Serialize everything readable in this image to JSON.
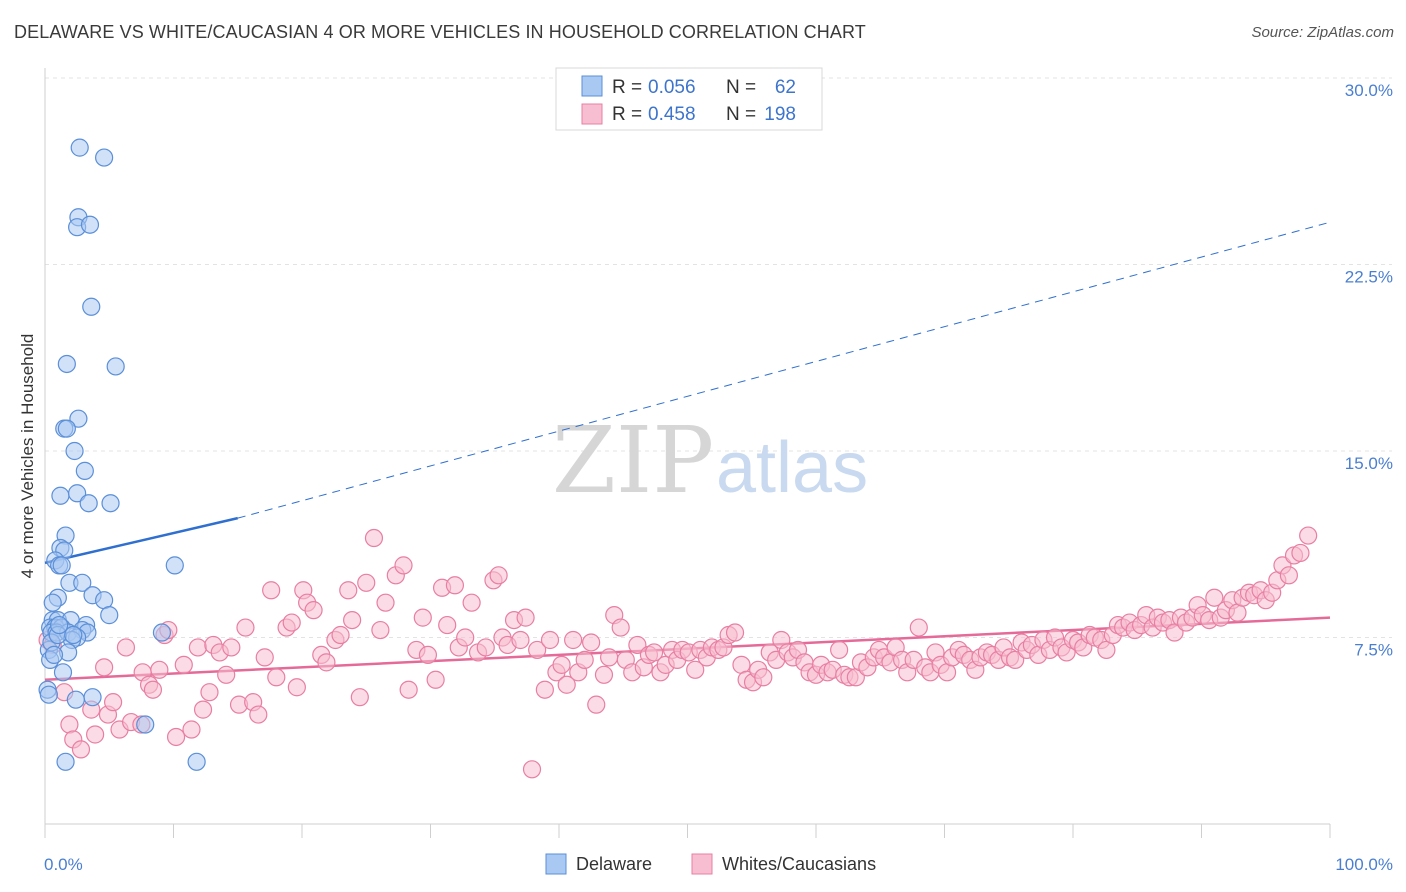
{
  "title": "DELAWARE VS WHITE/CAUCASIAN 4 OR MORE VEHICLES IN HOUSEHOLD CORRELATION CHART",
  "source": "Source: ZipAtlas.com",
  "watermark": {
    "zip": "ZIP",
    "atlas": "atlas"
  },
  "legend_top": {
    "r_label": "R =",
    "n_label": "N =",
    "rows": [
      {
        "r": "0.056",
        "n": "62"
      },
      {
        "r": "0.458",
        "n": "198"
      }
    ]
  },
  "colors": {
    "delaware_fill": "#a9c8f2",
    "delaware_stroke": "#5b8fd8",
    "delaware_line": "#2f6fcf",
    "white_fill": "#f7bdd0",
    "white_stroke": "#e87fa3",
    "white_line": "#e56a97",
    "tick": "#4a7fd0"
  },
  "chart_data": {
    "type": "scatter",
    "title": "DELAWARE VS WHITE/CAUCASIAN 4 OR MORE VEHICLES IN HOUSEHOLD CORRELATION CHART",
    "xlabel": "",
    "ylabel": "4 or more Vehicles in Household",
    "xlim": [
      0,
      100
    ],
    "ylim": [
      0,
      30
    ],
    "x_tick_labels": [
      "0.0%",
      "100.0%"
    ],
    "y_ticks": [
      7.5,
      15.0,
      22.5,
      30.0
    ],
    "y_tick_labels": [
      "7.5%",
      "15.0%",
      "22.5%",
      "30.0%"
    ],
    "grid": true,
    "legend": "top-center",
    "series": [
      {
        "name": "Delaware",
        "r": 0.056,
        "n": 62,
        "trend": {
          "x0": 0,
          "y0": 10.5,
          "x1": 15,
          "y1": 12.3,
          "dashed_to_x": 100,
          "dashed_to_y": 24.2
        },
        "points": [
          [
            2.7,
            27.2
          ],
          [
            4.6,
            26.8
          ],
          [
            2.6,
            24.4
          ],
          [
            2.5,
            24.0
          ],
          [
            3.5,
            24.1
          ],
          [
            3.6,
            20.8
          ],
          [
            1.7,
            18.5
          ],
          [
            5.5,
            18.4
          ],
          [
            2.6,
            16.3
          ],
          [
            1.5,
            15.9
          ],
          [
            1.7,
            15.9
          ],
          [
            2.3,
            15.0
          ],
          [
            3.1,
            14.2
          ],
          [
            1.2,
            13.2
          ],
          [
            2.5,
            13.3
          ],
          [
            3.4,
            12.9
          ],
          [
            5.1,
            12.9
          ],
          [
            1.6,
            11.6
          ],
          [
            1.2,
            11.1
          ],
          [
            1.5,
            11.0
          ],
          [
            0.8,
            10.6
          ],
          [
            1.1,
            10.4
          ],
          [
            1.3,
            10.4
          ],
          [
            10.1,
            10.4
          ],
          [
            1.9,
            9.7
          ],
          [
            2.9,
            9.7
          ],
          [
            1.0,
            9.1
          ],
          [
            3.7,
            9.2
          ],
          [
            4.6,
            9.0
          ],
          [
            0.6,
            8.9
          ],
          [
            5.0,
            8.4
          ],
          [
            0.6,
            8.2
          ],
          [
            1.0,
            8.2
          ],
          [
            2.0,
            8.2
          ],
          [
            0.4,
            7.9
          ],
          [
            0.8,
            7.9
          ],
          [
            1.3,
            7.9
          ],
          [
            3.2,
            8.0
          ],
          [
            0.5,
            7.7
          ],
          [
            0.9,
            7.7
          ],
          [
            1.8,
            7.7
          ],
          [
            2.9,
            7.8
          ],
          [
            3.3,
            7.7
          ],
          [
            2.5,
            7.5
          ],
          [
            2.1,
            7.4
          ],
          [
            9.1,
            7.7
          ],
          [
            0.3,
            7.0
          ],
          [
            1.8,
            6.9
          ],
          [
            0.4,
            6.6
          ],
          [
            1.4,
            6.1
          ],
          [
            0.2,
            5.4
          ],
          [
            3.7,
            5.1
          ],
          [
            2.4,
            5.0
          ],
          [
            7.8,
            4.0
          ],
          [
            1.6,
            2.5
          ],
          [
            11.8,
            2.5
          ],
          [
            0.5,
            7.3
          ],
          [
            1.0,
            7.6
          ],
          [
            0.7,
            6.8
          ],
          [
            2.2,
            7.6
          ],
          [
            0.3,
            5.2
          ],
          [
            1.1,
            8.0
          ]
        ]
      },
      {
        "name": "Whites/Caucasians",
        "r": 0.458,
        "n": 198,
        "trend": {
          "x0": 0,
          "y0": 5.8,
          "x1": 100,
          "y1": 8.3
        },
        "points": [
          [
            0.2,
            7.4
          ],
          [
            0.6,
            7.2
          ],
          [
            1.5,
            5.3
          ],
          [
            1.9,
            4.0
          ],
          [
            2.2,
            3.4
          ],
          [
            2.8,
            3.0
          ],
          [
            3.6,
            4.6
          ],
          [
            3.9,
            3.6
          ],
          [
            4.6,
            6.3
          ],
          [
            4.9,
            4.4
          ],
          [
            5.3,
            4.9
          ],
          [
            5.8,
            3.8
          ],
          [
            6.3,
            7.1
          ],
          [
            6.7,
            4.1
          ],
          [
            7.5,
            4.0
          ],
          [
            7.6,
            6.1
          ],
          [
            8.1,
            5.6
          ],
          [
            8.4,
            5.4
          ],
          [
            8.9,
            6.2
          ],
          [
            9.3,
            7.6
          ],
          [
            9.6,
            7.8
          ],
          [
            10.2,
            3.5
          ],
          [
            10.8,
            6.4
          ],
          [
            11.4,
            3.8
          ],
          [
            11.9,
            7.1
          ],
          [
            12.3,
            4.6
          ],
          [
            12.8,
            5.3
          ],
          [
            13.1,
            7.2
          ],
          [
            13.6,
            6.9
          ],
          [
            14.1,
            6.0
          ],
          [
            14.5,
            7.1
          ],
          [
            15.1,
            4.8
          ],
          [
            15.6,
            7.9
          ],
          [
            16.2,
            4.9
          ],
          [
            16.6,
            4.4
          ],
          [
            17.1,
            6.7
          ],
          [
            17.6,
            9.4
          ],
          [
            18.0,
            5.9
          ],
          [
            18.8,
            7.9
          ],
          [
            19.2,
            8.1
          ],
          [
            19.6,
            5.5
          ],
          [
            20.1,
            9.4
          ],
          [
            20.4,
            8.9
          ],
          [
            20.9,
            8.6
          ],
          [
            21.5,
            6.8
          ],
          [
            21.9,
            6.5
          ],
          [
            22.6,
            7.4
          ],
          [
            23.0,
            7.6
          ],
          [
            23.6,
            9.4
          ],
          [
            23.9,
            8.2
          ],
          [
            24.5,
            5.1
          ],
          [
            25.0,
            9.7
          ],
          [
            25.6,
            11.5
          ],
          [
            26.1,
            7.8
          ],
          [
            26.5,
            8.9
          ],
          [
            27.3,
            10.0
          ],
          [
            27.9,
            10.4
          ],
          [
            28.3,
            5.4
          ],
          [
            28.9,
            7.0
          ],
          [
            29.4,
            8.3
          ],
          [
            29.8,
            6.8
          ],
          [
            30.4,
            5.8
          ],
          [
            30.9,
            9.5
          ],
          [
            31.3,
            8.0
          ],
          [
            31.9,
            9.6
          ],
          [
            32.2,
            7.1
          ],
          [
            32.7,
            7.5
          ],
          [
            33.2,
            8.9
          ],
          [
            33.7,
            6.9
          ],
          [
            34.3,
            7.1
          ],
          [
            34.9,
            9.8
          ],
          [
            35.3,
            10.0
          ],
          [
            35.6,
            7.5
          ],
          [
            36.0,
            7.2
          ],
          [
            36.5,
            8.2
          ],
          [
            37.0,
            7.4
          ],
          [
            37.4,
            8.3
          ],
          [
            37.9,
            2.2
          ],
          [
            38.3,
            7.0
          ],
          [
            38.9,
            5.4
          ],
          [
            39.3,
            7.4
          ],
          [
            39.8,
            6.1
          ],
          [
            40.2,
            6.4
          ],
          [
            40.6,
            5.6
          ],
          [
            41.1,
            7.4
          ],
          [
            41.5,
            6.1
          ],
          [
            42.0,
            6.6
          ],
          [
            42.5,
            7.3
          ],
          [
            42.9,
            4.8
          ],
          [
            43.5,
            6.0
          ],
          [
            43.9,
            6.7
          ],
          [
            44.3,
            8.4
          ],
          [
            44.8,
            7.9
          ],
          [
            45.2,
            6.6
          ],
          [
            45.7,
            6.1
          ],
          [
            46.1,
            7.2
          ],
          [
            46.6,
            6.3
          ],
          [
            47.0,
            6.8
          ],
          [
            47.4,
            6.9
          ],
          [
            47.9,
            6.1
          ],
          [
            48.3,
            6.4
          ],
          [
            48.8,
            7.0
          ],
          [
            49.2,
            6.6
          ],
          [
            49.6,
            7.0
          ],
          [
            50.1,
            6.9
          ],
          [
            50.6,
            6.2
          ],
          [
            51.0,
            7.0
          ],
          [
            51.5,
            6.7
          ],
          [
            51.9,
            7.1
          ],
          [
            52.4,
            7.0
          ],
          [
            52.8,
            7.1
          ],
          [
            53.2,
            7.6
          ],
          [
            53.7,
            7.7
          ],
          [
            54.2,
            6.4
          ],
          [
            54.6,
            5.8
          ],
          [
            55.1,
            5.7
          ],
          [
            55.5,
            6.2
          ],
          [
            55.9,
            5.9
          ],
          [
            56.4,
            6.9
          ],
          [
            56.9,
            6.6
          ],
          [
            57.3,
            7.4
          ],
          [
            57.8,
            6.9
          ],
          [
            58.2,
            6.7
          ],
          [
            58.6,
            7.0
          ],
          [
            59.1,
            6.5
          ],
          [
            59.5,
            6.1
          ],
          [
            60.0,
            6.0
          ],
          [
            60.4,
            6.4
          ],
          [
            60.9,
            6.1
          ],
          [
            61.3,
            6.2
          ],
          [
            61.8,
            7.0
          ],
          [
            62.2,
            6.0
          ],
          [
            62.6,
            5.9
          ],
          [
            63.1,
            5.9
          ],
          [
            63.5,
            6.5
          ],
          [
            64.0,
            6.3
          ],
          [
            64.5,
            6.7
          ],
          [
            64.9,
            7.0
          ],
          [
            65.3,
            6.7
          ],
          [
            65.8,
            6.5
          ],
          [
            66.2,
            7.1
          ],
          [
            66.7,
            6.6
          ],
          [
            67.1,
            6.1
          ],
          [
            67.6,
            6.6
          ],
          [
            68.0,
            7.9
          ],
          [
            68.5,
            6.3
          ],
          [
            68.9,
            6.1
          ],
          [
            69.3,
            6.9
          ],
          [
            69.7,
            6.4
          ],
          [
            70.2,
            6.1
          ],
          [
            70.6,
            6.7
          ],
          [
            71.1,
            7.0
          ],
          [
            71.5,
            6.8
          ],
          [
            72.0,
            6.6
          ],
          [
            72.4,
            6.2
          ],
          [
            72.8,
            6.7
          ],
          [
            73.3,
            6.9
          ],
          [
            73.7,
            6.8
          ],
          [
            74.2,
            6.6
          ],
          [
            74.6,
            7.1
          ],
          [
            75.1,
            6.7
          ],
          [
            75.5,
            6.6
          ],
          [
            76.0,
            7.3
          ],
          [
            76.4,
            7.0
          ],
          [
            76.8,
            7.2
          ],
          [
            77.3,
            6.8
          ],
          [
            77.7,
            7.4
          ],
          [
            78.2,
            7.0
          ],
          [
            78.6,
            7.5
          ],
          [
            79.1,
            7.1
          ],
          [
            79.5,
            6.9
          ],
          [
            80.0,
            7.4
          ],
          [
            80.4,
            7.3
          ],
          [
            80.8,
            7.1
          ],
          [
            81.3,
            7.6
          ],
          [
            81.7,
            7.5
          ],
          [
            82.2,
            7.4
          ],
          [
            82.6,
            7.0
          ],
          [
            83.1,
            7.6
          ],
          [
            83.5,
            8.0
          ],
          [
            83.9,
            7.9
          ],
          [
            84.4,
            8.1
          ],
          [
            84.8,
            7.8
          ],
          [
            85.3,
            8.0
          ],
          [
            85.7,
            8.4
          ],
          [
            86.2,
            7.9
          ],
          [
            86.6,
            8.3
          ],
          [
            87.0,
            8.1
          ],
          [
            87.5,
            8.2
          ],
          [
            87.9,
            7.7
          ],
          [
            88.4,
            8.3
          ],
          [
            88.8,
            8.1
          ],
          [
            89.3,
            8.3
          ],
          [
            89.7,
            8.8
          ],
          [
            90.1,
            8.4
          ],
          [
            90.6,
            8.2
          ],
          [
            91.0,
            9.1
          ],
          [
            91.5,
            8.3
          ],
          [
            91.9,
            8.6
          ],
          [
            92.4,
            9.0
          ],
          [
            92.8,
            8.5
          ],
          [
            93.2,
            9.1
          ],
          [
            93.7,
            9.3
          ],
          [
            94.1,
            9.2
          ],
          [
            94.6,
            9.4
          ],
          [
            95.0,
            9.0
          ],
          [
            95.5,
            9.3
          ],
          [
            95.9,
            9.8
          ],
          [
            96.3,
            10.4
          ],
          [
            96.8,
            10.0
          ],
          [
            97.2,
            10.8
          ],
          [
            97.7,
            10.9
          ],
          [
            98.3,
            11.6
          ]
        ]
      }
    ]
  },
  "bottom_legend": [
    {
      "label": "Delaware"
    },
    {
      "label": "Whites/Caucasians"
    }
  ]
}
